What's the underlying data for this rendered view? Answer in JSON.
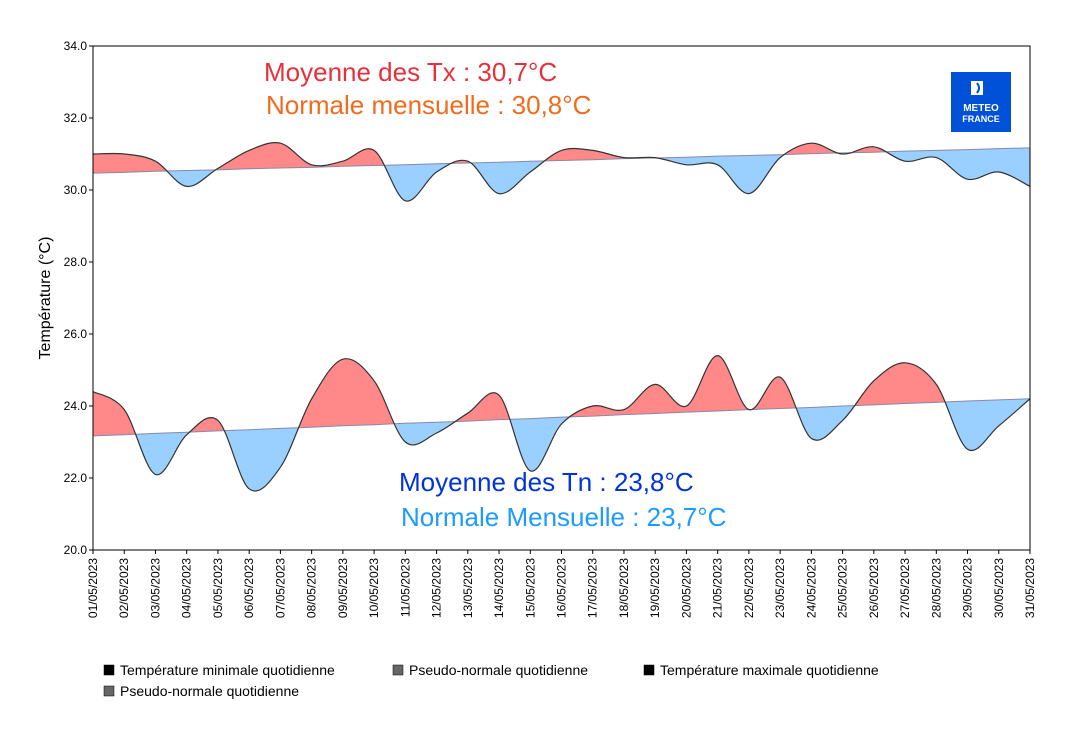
{
  "chart_data": {
    "type": "area",
    "ylabel": "Température (°C)",
    "ylim": [
      20,
      34
    ],
    "yticks": [
      "20.0",
      "22.0",
      "24.0",
      "26.0",
      "28.0",
      "30.0",
      "32.0",
      "34.0"
    ],
    "grid": false,
    "x": [
      "01/05/2023",
      "02/05/2023",
      "03/05/2023",
      "04/05/2023",
      "05/05/2023",
      "06/05/2023",
      "07/05/2023",
      "08/05/2023",
      "09/05/2023",
      "10/05/2023",
      "11/05/2023",
      "12/05/2023",
      "13/05/2023",
      "14/05/2023",
      "15/05/2023",
      "16/05/2023",
      "17/05/2023",
      "18/05/2023",
      "19/05/2023",
      "20/05/2023",
      "21/05/2023",
      "22/05/2023",
      "23/05/2023",
      "24/05/2023",
      "25/05/2023",
      "26/05/2023",
      "27/05/2023",
      "28/05/2023",
      "29/05/2023",
      "30/05/2023",
      "31/05/2023"
    ],
    "series": [
      {
        "name": "Température minimale quotidienne",
        "values": [
          24.4,
          23.9,
          22.1,
          23.2,
          23.6,
          21.7,
          22.3,
          24.2,
          25.3,
          24.7,
          23.0,
          23.25,
          23.8,
          24.3,
          22.2,
          23.5,
          24.0,
          23.9,
          24.6,
          24.0,
          25.4,
          23.9,
          24.8,
          23.1,
          23.6,
          24.7,
          25.2,
          24.6,
          22.8,
          23.45,
          24.2
        ]
      },
      {
        "name": "Pseudo-normale quotidienne",
        "values": [
          23.17,
          23.2,
          23.24,
          23.27,
          23.31,
          23.34,
          23.38,
          23.41,
          23.45,
          23.48,
          23.52,
          23.55,
          23.58,
          23.62,
          23.65,
          23.69,
          23.72,
          23.76,
          23.79,
          23.83,
          23.86,
          23.9,
          23.93,
          23.96,
          24.0,
          24.03,
          24.07,
          24.1,
          24.14,
          24.17,
          24.2
        ]
      },
      {
        "name": "Température maximale quotidienne",
        "values": [
          31.0,
          31.0,
          30.8,
          30.1,
          30.6,
          31.1,
          31.3,
          30.7,
          30.8,
          31.1,
          29.7,
          30.5,
          30.8,
          29.9,
          30.5,
          31.1,
          31.1,
          30.9,
          30.9,
          30.7,
          30.7,
          29.9,
          30.9,
          31.3,
          31.0,
          31.2,
          30.8,
          30.9,
          30.3,
          30.5,
          30.1
        ]
      },
      {
        "name": "Pseudo-normale quotidienne",
        "values": [
          30.47,
          30.49,
          30.52,
          30.54,
          30.56,
          30.59,
          30.61,
          30.63,
          30.66,
          30.68,
          30.7,
          30.73,
          30.75,
          30.77,
          30.8,
          30.82,
          30.84,
          30.87,
          30.89,
          30.91,
          30.94,
          30.96,
          30.98,
          31.01,
          31.03,
          31.05,
          31.08,
          31.1,
          31.12,
          31.15,
          31.17
        ]
      }
    ],
    "colors": {
      "above": "#ff8888",
      "below": "#99d0ff",
      "line": "#333333",
      "normal": "#8888aa"
    },
    "annotations": {
      "tx_mean": "Moyenne des Tx : 30,7°C",
      "tx_normal": "Normale mensuelle : 30,8°C",
      "tn_mean": "Moyenne des Tn : 23,8°C",
      "tn_normal": "Normale Mensuelle : 23,7°C"
    },
    "annotation_colors": {
      "tx_mean": "#e8303a",
      "tx_normal": "#f26b1d",
      "tn_mean": "#0033dd",
      "tn_normal": "#1e9bff"
    },
    "legend": [
      {
        "label": "Température minimale quotidienne",
        "color": "#000000"
      },
      {
        "label": "Pseudo-normale quotidienne",
        "color": "#666666"
      },
      {
        "label": "Température maximale quotidienne",
        "color": "#000000"
      },
      {
        "label": "Pseudo-normale quotidienne",
        "color": "#666666"
      }
    ],
    "legend_position": "bottom"
  },
  "logo": {
    "line1": "METEO",
    "line2": "FRANCE",
    "color": "#0050d8"
  }
}
